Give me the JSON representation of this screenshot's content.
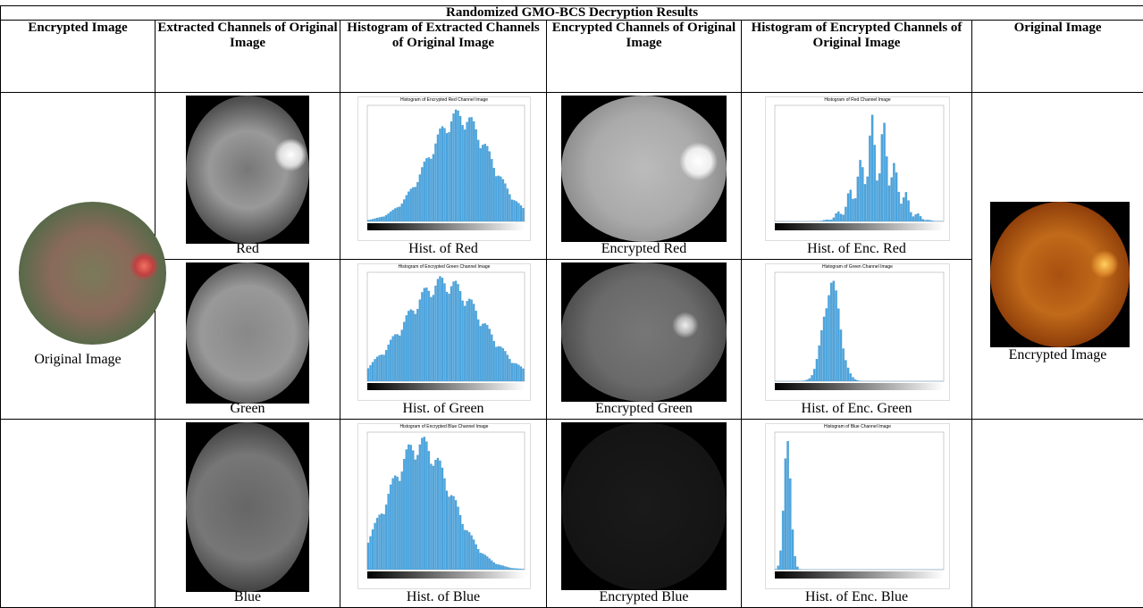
{
  "header": {
    "title": "Randomized GMO-BCS Decryption Results"
  },
  "table": {
    "columns": [
      "Encrypted Image",
      "Extracted Channels of Original Image",
      "Histogram of Extracted Channels of Original Image",
      "Encrypted Channels of Original Image",
      "Histogram of Encrypted Channels of Original Image",
      "Original Image"
    ],
    "first_caption": "Original Image",
    "last_caption": "Encrypted Image",
    "rows": [
      {
        "channel": "Red",
        "hist": "Hist. of Red",
        "hist_title": "Histogram of Encrypted Red Channel Image",
        "encrypted": "Encrypted Red",
        "enc_hist": "Hist. of Enc. Red",
        "enc_hist_title": "Histogram of Red Channel Image"
      },
      {
        "channel": "Green",
        "hist": "Hist. of Green",
        "hist_title": "Histogram of Encrypted Green Channel Image",
        "encrypted": "Encrypted Green",
        "enc_hist": "Hist. of Enc. Green",
        "enc_hist_title": "Histogram of Green Channel Image"
      },
      {
        "channel": "Blue",
        "hist": "Hist. of Blue",
        "hist_title": "Histogram of Encrypted Blue Channel Image",
        "encrypted": "Encrypted Blue",
        "enc_hist": "Hist. of Enc. Blue",
        "enc_hist_title": "Histogram of Blue Channel Image"
      }
    ]
  }
}
